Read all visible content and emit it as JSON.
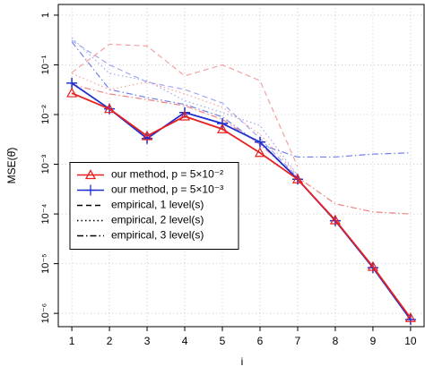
{
  "chart_data": {
    "type": "line",
    "xlabel": "i",
    "ylabel": "MSE(θ̂)",
    "x": [
      1,
      2,
      3,
      4,
      5,
      6,
      7,
      8,
      9,
      10
    ],
    "xlim": [
      0.64,
      10.36
    ],
    "xticks": [
      1,
      2,
      3,
      4,
      5,
      6,
      7,
      8,
      9,
      10
    ],
    "ylim": [
      5.4e-07,
      1.64
    ],
    "ylog": true,
    "yticks": [
      {
        "value": 1,
        "label": "1"
      },
      {
        "value": 0.1,
        "label": "10⁻¹"
      },
      {
        "value": 0.01,
        "label": "10⁻²"
      },
      {
        "value": 0.001,
        "label": "10⁻³"
      },
      {
        "value": 0.0001,
        "label": "10⁻⁴"
      },
      {
        "value": 1e-05,
        "label": "10⁻⁵"
      },
      {
        "value": 1e-06,
        "label": "10⁻⁶"
      }
    ],
    "grid": true,
    "legend": "center left",
    "series": [
      {
        "name": "our method, p = 5×10⁻²",
        "color": "#e8201f",
        "dash": "solid",
        "marker": "triangle",
        "values": [
          0.027,
          0.013,
          0.0037,
          0.0092,
          0.0051,
          0.0017,
          0.0005,
          7.5e-05,
          8.7e-06,
          8.1e-07
        ]
      },
      {
        "name": "our method, p = 5×10⁻³",
        "color": "#1f2fd0",
        "dash": "solid",
        "marker": "plus",
        "values": [
          0.043,
          0.013,
          0.0033,
          0.011,
          0.0066,
          0.0028,
          0.0005,
          7.3e-05,
          8.3e-06,
          7.5e-07
        ]
      },
      {
        "name": "empirical, 1 level(s)",
        "color": "#f4a0a0",
        "dash": "dashed",
        "values": [
          0.07,
          0.26,
          0.24,
          0.06,
          0.1,
          0.048,
          0.0009,
          null,
          null,
          null
        ]
      },
      {
        "name": "empirical, 1 level(s)",
        "color": "#a0a8f0",
        "dash": "dashed",
        "values": [
          0.31,
          0.1,
          0.045,
          0.032,
          0.017,
          0.0033,
          0.00055,
          null,
          null,
          null
        ]
      },
      {
        "name": "empirical, 2 level(s)",
        "color": "#f4a0a0",
        "dash": "dotted",
        "values": [
          0.067,
          0.032,
          0.045,
          0.026,
          0.014,
          0.004,
          0.0006,
          null,
          null,
          null
        ]
      },
      {
        "name": "empirical, 2 level(s)",
        "color": "#a0a8f0",
        "dash": "dotted",
        "values": [
          0.35,
          0.067,
          0.048,
          0.019,
          0.011,
          0.006,
          0.0006,
          null,
          null,
          null
        ]
      },
      {
        "name": "empirical, 3 level(s)",
        "color": "#f08080",
        "dash": "dashdot",
        "values": [
          0.04,
          0.026,
          0.02,
          0.015,
          0.008,
          0.0025,
          0.00055,
          0.00016,
          0.00011,
          0.0001
        ]
      },
      {
        "name": "empirical, 3 level(s)",
        "color": "#7080e8",
        "dash": "dashdot",
        "values": [
          0.29,
          0.032,
          0.022,
          0.016,
          0.009,
          0.0025,
          0.0014,
          0.0014,
          0.0016,
          0.0017
        ]
      }
    ]
  }
}
